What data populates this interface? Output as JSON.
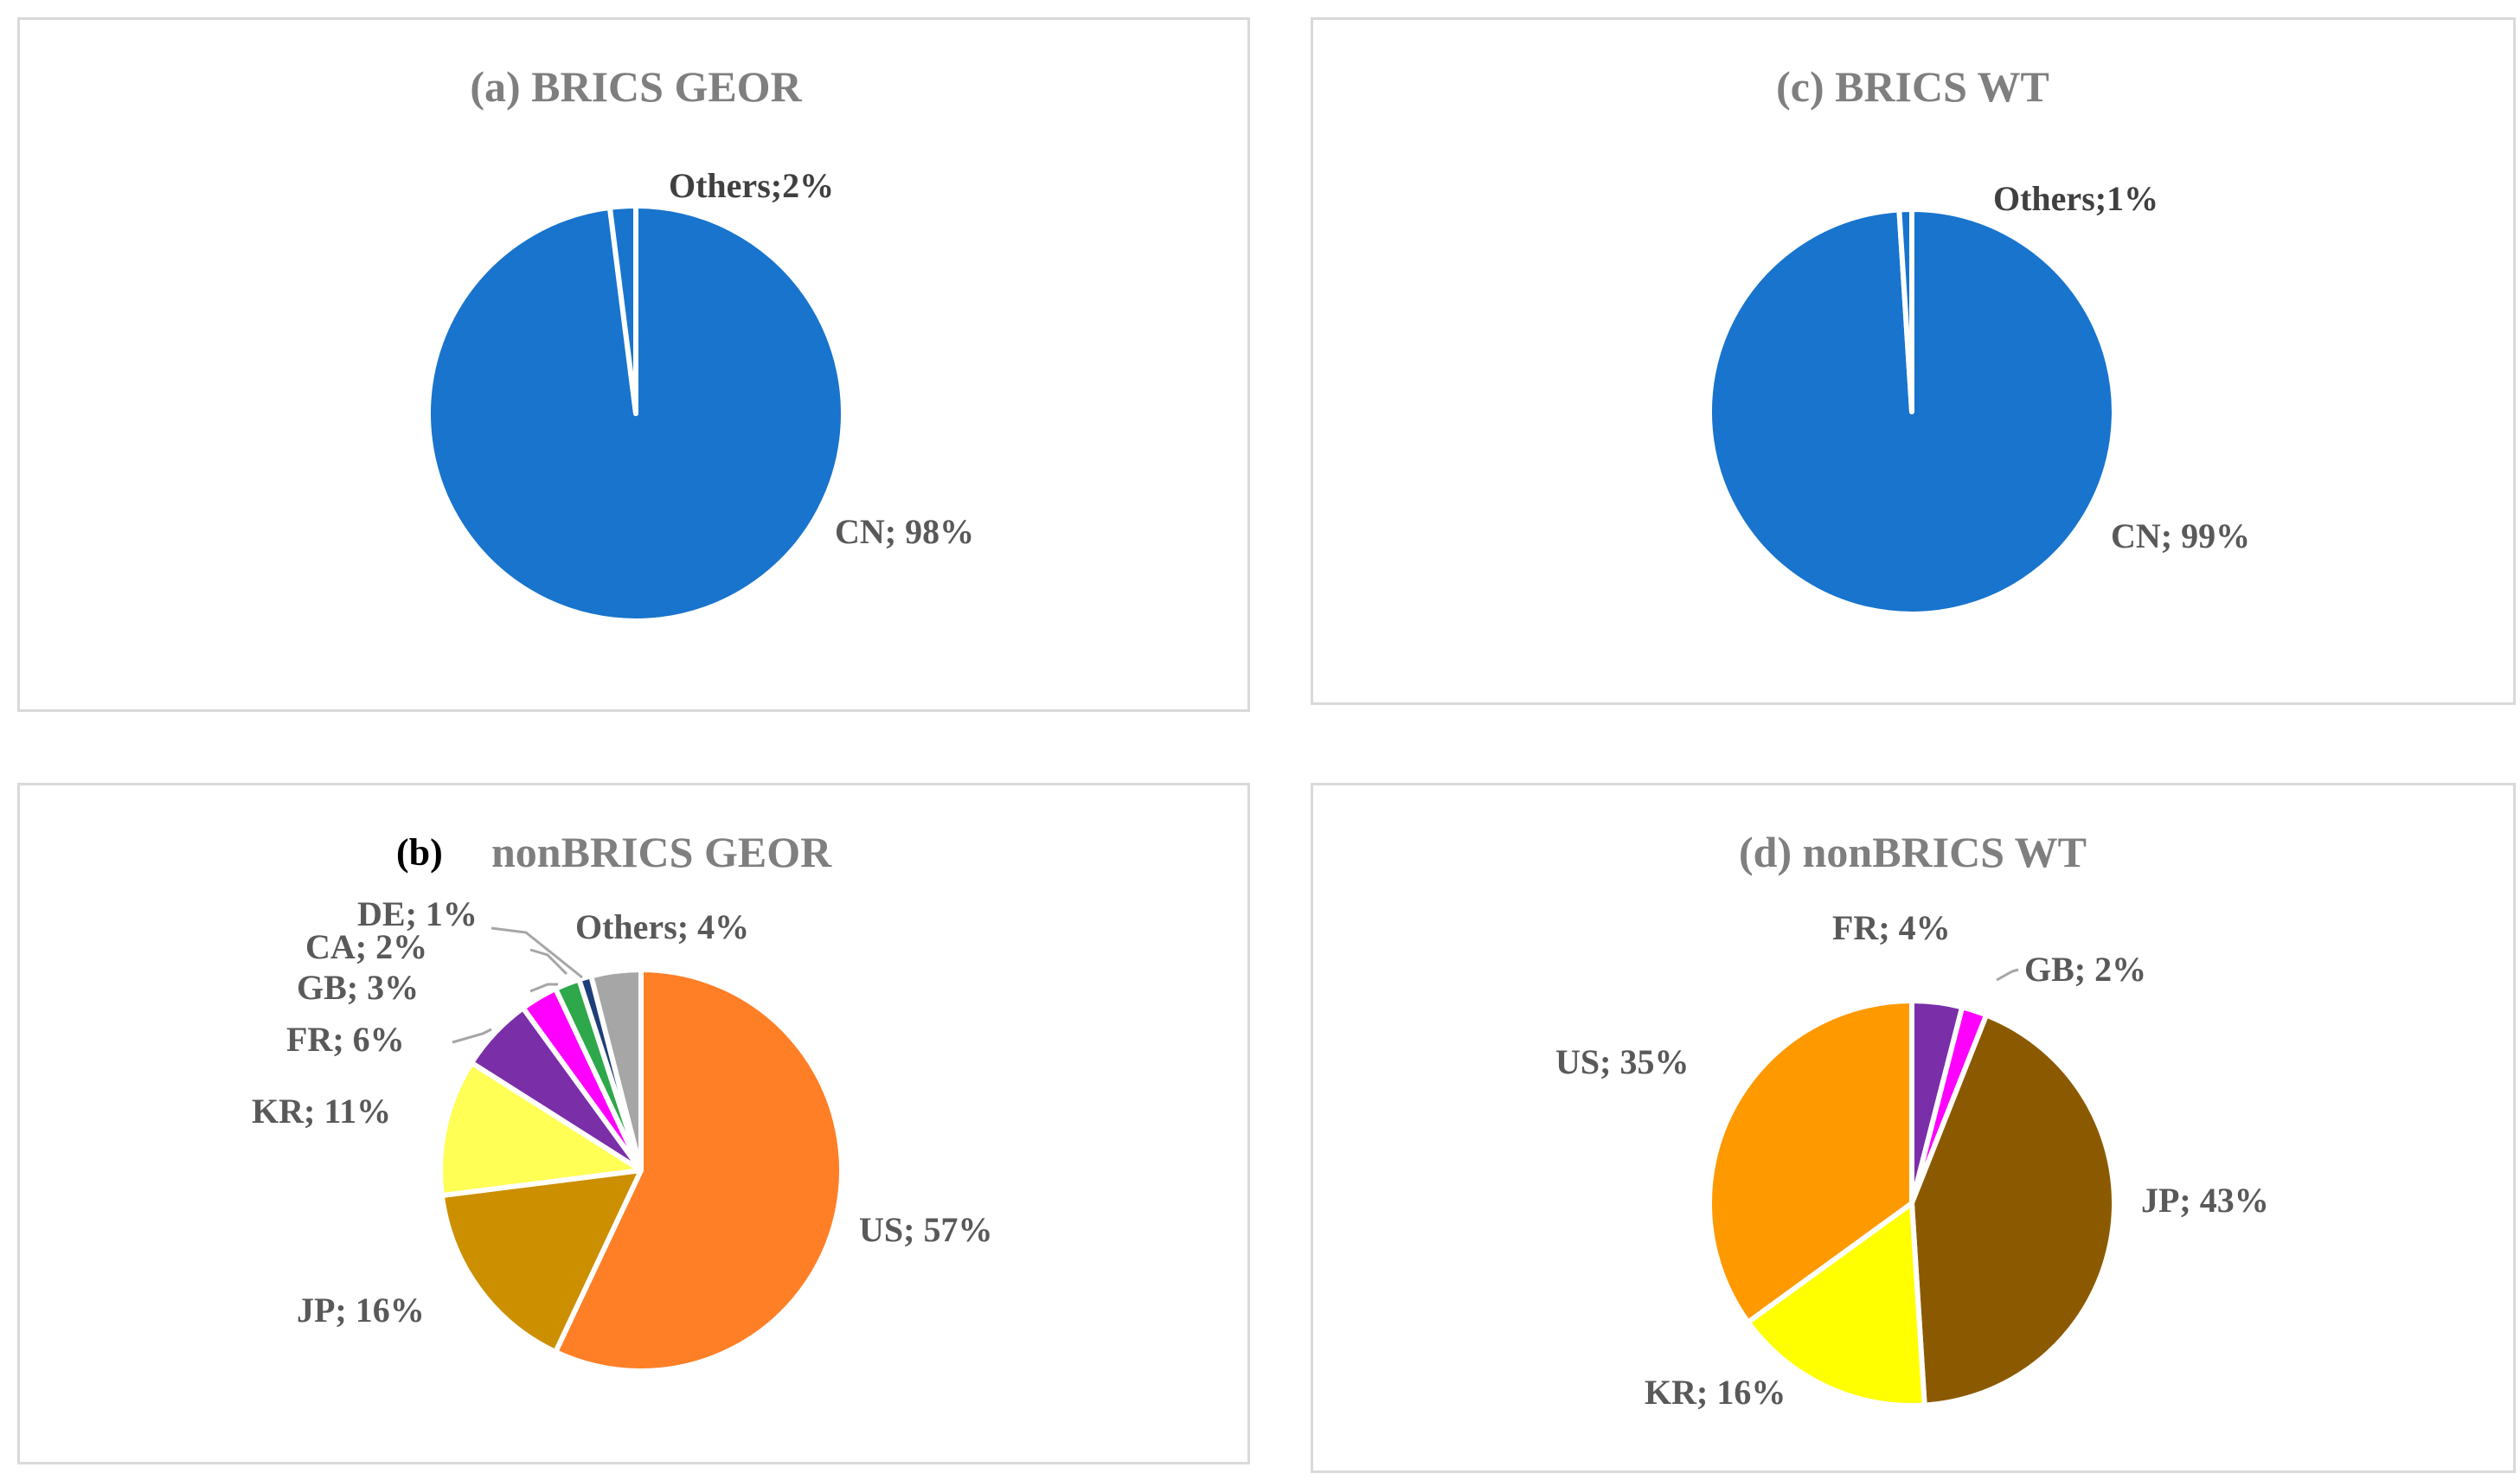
{
  "chart_data": [
    {
      "type": "pie",
      "id": "a",
      "title": "(a) BRICS GEOR",
      "slices": [
        {
          "label": "CN",
          "value": 98,
          "text": "CN; 98%",
          "color": "#1874cd"
        },
        {
          "label": "Others",
          "value": 2,
          "text": "Others;2%",
          "color": "#1874cd"
        }
      ]
    },
    {
      "type": "pie",
      "id": "b",
      "title_prefix": "(b)",
      "title": "nonBRICS GEOR",
      "slices": [
        {
          "label": "US",
          "value": 57,
          "text": "US; 57%",
          "color": "#ff7f27"
        },
        {
          "label": "JP",
          "value": 16,
          "text": "JP; 16%",
          "color": "#cc8f00"
        },
        {
          "label": "KR",
          "value": 11,
          "text": "KR; 11%",
          "color": "#ffff55"
        },
        {
          "label": "FR",
          "value": 6,
          "text": "FR; 6%",
          "color": "#7a2ea8"
        },
        {
          "label": "GB",
          "value": 3,
          "text": "GB; 3%",
          "color": "#ff00ff"
        },
        {
          "label": "CA",
          "value": 2,
          "text": "CA; 2%",
          "color": "#2ea84a"
        },
        {
          "label": "DE",
          "value": 1,
          "text": "DE; 1%",
          "color": "#1f3f7a"
        },
        {
          "label": "Others",
          "value": 4,
          "text": "Others; 4%",
          "color": "#a6a6a6"
        }
      ]
    },
    {
      "type": "pie",
      "id": "c",
      "title": "(c) BRICS WT",
      "slices": [
        {
          "label": "CN",
          "value": 99,
          "text": "CN; 99%",
          "color": "#1874cd"
        },
        {
          "label": "Others",
          "value": 1,
          "text": "Others;1%",
          "color": "#1874cd"
        }
      ]
    },
    {
      "type": "pie",
      "id": "d",
      "title": "(d) nonBRICS WT",
      "slices": [
        {
          "label": "FR",
          "value": 4,
          "text": "FR; 4%",
          "color": "#7a2ea8"
        },
        {
          "label": "GB",
          "value": 2,
          "text": "GB; 2%",
          "color": "#ff00ff"
        },
        {
          "label": "JP",
          "value": 43,
          "text": "JP; 43%",
          "color": "#8b5a00"
        },
        {
          "label": "KR",
          "value": 16,
          "text": "KR; 16%",
          "color": "#ffff00"
        },
        {
          "label": "US",
          "value": 35,
          "text": "US; 35%",
          "color": "#ff9900"
        }
      ]
    }
  ]
}
